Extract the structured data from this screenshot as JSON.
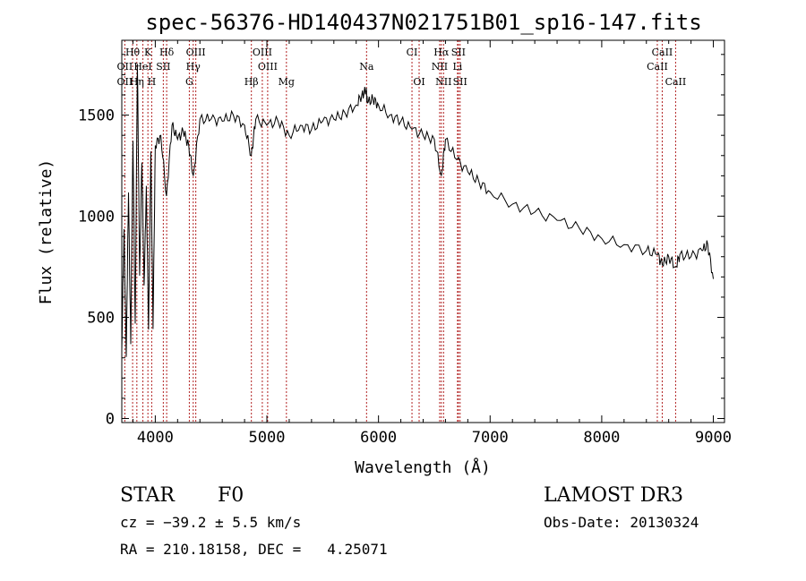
{
  "chart_data": {
    "type": "line",
    "title": "spec-56376-HD140437N021751B01_sp16-147.fits",
    "xlabel": "Wavelength (Å)",
    "ylabel": "Flux (relative)",
    "xlim": [
      3700,
      9100
    ],
    "ylim": [
      -20,
      1870
    ],
    "x_ticks": [
      4000,
      5000,
      6000,
      7000,
      8000,
      9000
    ],
    "x_tick_labels": [
      "4000",
      "5000",
      "6000",
      "7000",
      "8000",
      "9000"
    ],
    "y_ticks": [
      0,
      500,
      1000,
      1500
    ],
    "y_tick_labels": [
      "0",
      "500",
      "1000",
      "1500"
    ],
    "series": [
      {
        "name": "Flux",
        "color": "#000000",
        "x": [
          3700,
          3720,
          3740,
          3760,
          3780,
          3800,
          3820,
          3840,
          3860,
          3880,
          3900,
          3920,
          3940,
          3960,
          3980,
          4000,
          4050,
          4100,
          4150,
          4200,
          4250,
          4300,
          4340,
          4400,
          4500,
          4600,
          4700,
          4800,
          4860,
          4900,
          5000,
          5100,
          5200,
          5300,
          5400,
          5500,
          5600,
          5700,
          5800,
          5850,
          5890,
          5900,
          5950,
          6000,
          6100,
          6200,
          6300,
          6400,
          6500,
          6563,
          6600,
          6700,
          6800,
          6900,
          7000,
          7200,
          7400,
          7600,
          7800,
          8000,
          8200,
          8400,
          8500,
          8542,
          8600,
          8662,
          8700,
          8800,
          8900,
          8950,
          9000
        ],
        "y": [
          200,
          900,
          400,
          1100,
          300,
          1400,
          600,
          1500,
          900,
          1300,
          400,
          1450,
          300,
          1250,
          600,
          1350,
          1400,
          1100,
          1450,
          1380,
          1420,
          1350,
          1200,
          1480,
          1480,
          1470,
          1500,
          1450,
          1300,
          1480,
          1450,
          1470,
          1400,
          1450,
          1430,
          1470,
          1480,
          1510,
          1550,
          1600,
          1620,
          1560,
          1580,
          1550,
          1500,
          1470,
          1430,
          1400,
          1380,
          1200,
          1380,
          1280,
          1220,
          1170,
          1120,
          1060,
          1020,
          980,
          940,
          890,
          860,
          830,
          810,
          760,
          800,
          750,
          810,
          800,
          830,
          860,
          690
        ]
      }
    ],
    "lines": [
      {
        "label": "Hθ",
        "wavelength": 3797,
        "row": 1
      },
      {
        "label": "K",
        "wavelength": 3934,
        "row": 1
      },
      {
        "label": "Hδ",
        "wavelength": 4102,
        "row": 1
      },
      {
        "label": "OIII",
        "wavelength": 4363,
        "row": 1
      },
      {
        "label": "OIII",
        "wavelength": 4959,
        "row": 1
      },
      {
        "label": "Na",
        "wavelength": 5893,
        "row": 2
      },
      {
        "label": "CI",
        "wavelength": 6300,
        "row": 1
      },
      {
        "label": "OI",
        "wavelength": 6364,
        "row": 3
      },
      {
        "label": "Hα",
        "wavelength": 6563,
        "row": 1
      },
      {
        "label": "NII",
        "wavelength": 6548,
        "row": 2
      },
      {
        "label": "NII",
        "wavelength": 6583,
        "row": 3
      },
      {
        "label": "SII",
        "wavelength": 6716,
        "row": 1
      },
      {
        "label": "Li",
        "wavelength": 6708,
        "row": 2
      },
      {
        "label": "SII",
        "wavelength": 6731,
        "row": 3
      },
      {
        "label": "CaII",
        "wavelength": 8542,
        "row": 1
      },
      {
        "label": "CaII",
        "wavelength": 8498,
        "row": 2
      },
      {
        "label": "CaII",
        "wavelength": 8662,
        "row": 3
      },
      {
        "label": "OII",
        "wavelength": 3727,
        "row": 2
      },
      {
        "label": "HeI",
        "wavelength": 3889,
        "row": 2
      },
      {
        "label": "SII",
        "wavelength": 4072,
        "row": 2
      },
      {
        "label": "Hγ",
        "wavelength": 4340,
        "row": 2
      },
      {
        "label": "OIII",
        "wavelength": 5007,
        "row": 2
      },
      {
        "label": "OII",
        "wavelength": 3727,
        "row": 3
      },
      {
        "label": "Hη",
        "wavelength": 3835,
        "row": 3
      },
      {
        "label": "H",
        "wavelength": 3968,
        "row": 3
      },
      {
        "label": "G",
        "wavelength": 4305,
        "row": 3
      },
      {
        "label": "Hβ",
        "wavelength": 4861,
        "row": 3
      },
      {
        "label": "Mg",
        "wavelength": 5175,
        "row": 3
      }
    ],
    "grid": false
  },
  "info": {
    "object_class": "STAR",
    "subclass": "F0",
    "survey": "LAMOST DR3",
    "velocity": "cz = −39.2 ± 5.5 km/s",
    "obs_date": "Obs-Date: 20130324",
    "coords": "RA = 210.18158, DEC =   4.25071"
  },
  "colors": {
    "line_marker": "#b22222",
    "spectrum": "#000000"
  }
}
